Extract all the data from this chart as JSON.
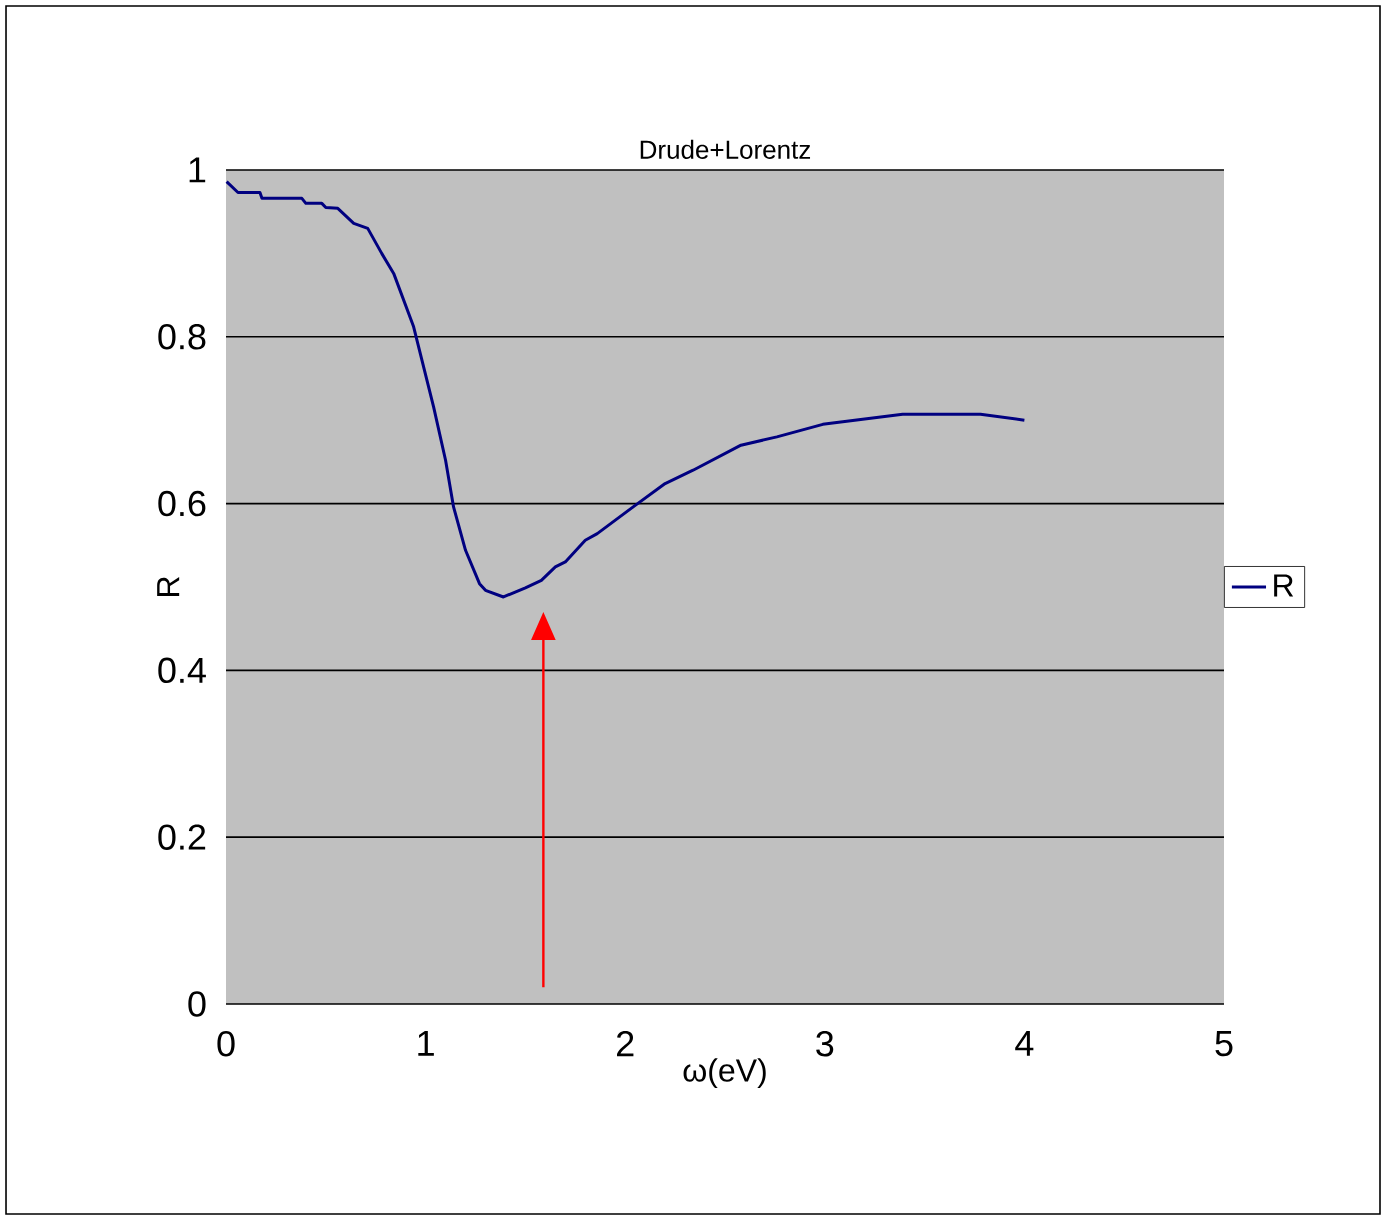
{
  "chart_data": {
    "type": "line",
    "title": "Drude+Lorentz",
    "xlabel": "ω(eV)",
    "ylabel": "R",
    "xlim": [
      0,
      5
    ],
    "xticks": [
      0,
      1,
      2,
      3,
      4,
      5
    ],
    "ylim": [
      0,
      1
    ],
    "yticks": [
      0,
      0.2,
      0.4,
      0.6,
      0.8,
      1
    ],
    "grid": "y",
    "legend": "right",
    "marker": "none",
    "line_style": "solid",
    "series": [
      {
        "name": "R",
        "color": "#000080",
        "x": [
          0.003,
          0.06,
          0.17,
          0.18,
          0.38,
          0.4,
          0.48,
          0.5,
          0.56,
          0.64,
          0.71,
          0.78,
          0.84,
          0.94,
          1.04,
          1.1,
          1.14,
          1.2,
          1.27,
          1.3,
          1.39,
          1.5,
          1.58,
          1.65,
          1.7,
          1.8,
          1.86,
          2.04,
          2.2,
          2.34,
          2.58,
          2.76,
          2.99,
          3.39,
          3.78,
          4.0
        ],
        "values": [
          0.986,
          0.973,
          0.973,
          0.966,
          0.966,
          0.96,
          0.96,
          0.955,
          0.954,
          0.936,
          0.93,
          0.9,
          0.876,
          0.812,
          0.716,
          0.652,
          0.596,
          0.544,
          0.504,
          0.496,
          0.488,
          0.499,
          0.508,
          0.524,
          0.53,
          0.556,
          0.564,
          0.596,
          0.624,
          0.64,
          0.67,
          0.68,
          0.695,
          0.707,
          0.707,
          0.7
        ]
      }
    ]
  }
}
